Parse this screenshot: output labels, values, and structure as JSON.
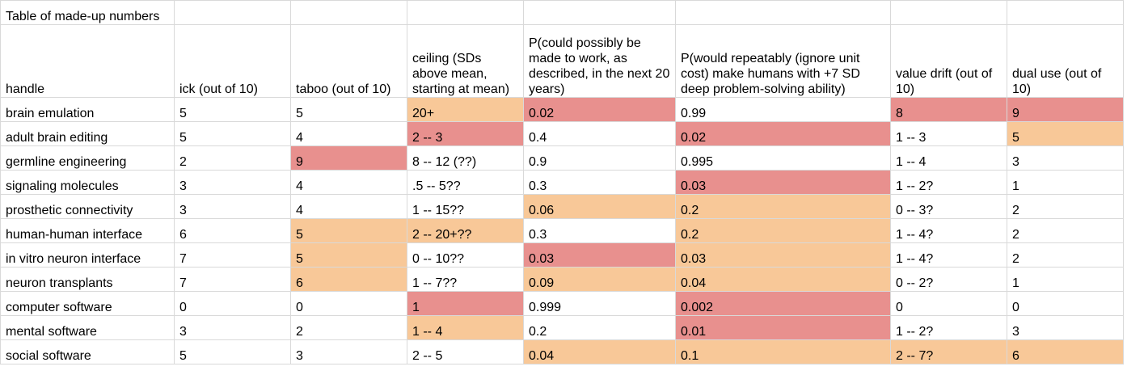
{
  "title": "Table of made-up numbers",
  "headers": [
    "handle",
    "ick (out of 10)",
    "taboo (out of 10)",
    " ceiling (SDs above mean, starting at mean)",
    "P(could possibly be made to work, as described, in the next 20 years)",
    "P(would repeatably (ignore unit cost) make humans with +7 SD deep problem-solving ability)",
    "value drift (out of 10)",
    "dual use (out of 10)"
  ],
  "rows": [
    {
      "cells": [
        "brain emulation",
        "5",
        "5",
        "20+",
        "0.02",
        "0.99",
        "8",
        "9"
      ],
      "colors": [
        "",
        "",
        "",
        "orange",
        "red",
        "",
        "red",
        "red"
      ]
    },
    {
      "cells": [
        "adult brain editing",
        "5",
        "4",
        "2 -- 3",
        "0.4",
        "0.02",
        "1 -- 3",
        "5"
      ],
      "colors": [
        "",
        "",
        "",
        "red",
        "",
        "red",
        "",
        "orange"
      ]
    },
    {
      "cells": [
        "germline engineering",
        "2",
        "9",
        "8 -- 12 (??)",
        "0.9",
        "0.995",
        "1 -- 4",
        "3"
      ],
      "colors": [
        "",
        "",
        "red",
        "",
        "",
        "",
        "",
        ""
      ]
    },
    {
      "cells": [
        "signaling molecules",
        "3",
        "4",
        ".5 -- 5??",
        "0.3",
        "0.03",
        "1 -- 2?",
        "1"
      ],
      "colors": [
        "",
        "",
        "",
        "",
        "",
        "red",
        "",
        ""
      ]
    },
    {
      "cells": [
        "prosthetic connectivity",
        "3",
        "4",
        "1 -- 15??",
        "0.06",
        "0.2",
        "0 -- 3?",
        "2"
      ],
      "colors": [
        "",
        "",
        "",
        "",
        "orange",
        "orange",
        "",
        ""
      ]
    },
    {
      "cells": [
        "human-human interface",
        "6",
        "5",
        "2 -- 20+??",
        "0.3",
        "0.2",
        "1 -- 4?",
        "2"
      ],
      "colors": [
        "",
        "",
        "orange",
        "orange",
        "",
        "orange",
        "",
        ""
      ]
    },
    {
      "cells": [
        "in vitro neuron interface",
        "7",
        "5",
        "0 -- 10??",
        "0.03",
        "0.03",
        "1 -- 4?",
        "2"
      ],
      "colors": [
        "",
        "",
        "orange",
        "",
        "red",
        "orange",
        "",
        ""
      ]
    },
    {
      "cells": [
        "neuron transplants",
        "7",
        "6",
        "1 -- 7??",
        "0.09",
        "0.04",
        "0 -- 2?",
        "1"
      ],
      "colors": [
        "",
        "",
        "orange",
        "",
        "orange",
        "orange",
        "",
        ""
      ]
    },
    {
      "cells": [
        "computer software",
        "0",
        "0",
        "1",
        "0.999",
        "0.002",
        "0",
        "0"
      ],
      "colors": [
        "",
        "",
        "",
        "red",
        "",
        "red",
        "",
        ""
      ]
    },
    {
      "cells": [
        "mental software",
        "3",
        "2",
        "1 -- 4",
        "0.2",
        "0.01",
        "1 -- 2?",
        "3"
      ],
      "colors": [
        "",
        "",
        "",
        "orange",
        "",
        "red",
        "",
        ""
      ]
    },
    {
      "cells": [
        "social software",
        "5",
        "3",
        "2 -- 5",
        "0.04",
        "0.1",
        "2 -- 7?",
        "6"
      ],
      "colors": [
        "",
        "",
        "",
        "",
        "orange",
        "orange",
        "orange",
        "orange"
      ]
    }
  ],
  "colors": {
    "red": "#e8908e",
    "orange": "#f8c898",
    "gridline": "#d9d9d9"
  }
}
